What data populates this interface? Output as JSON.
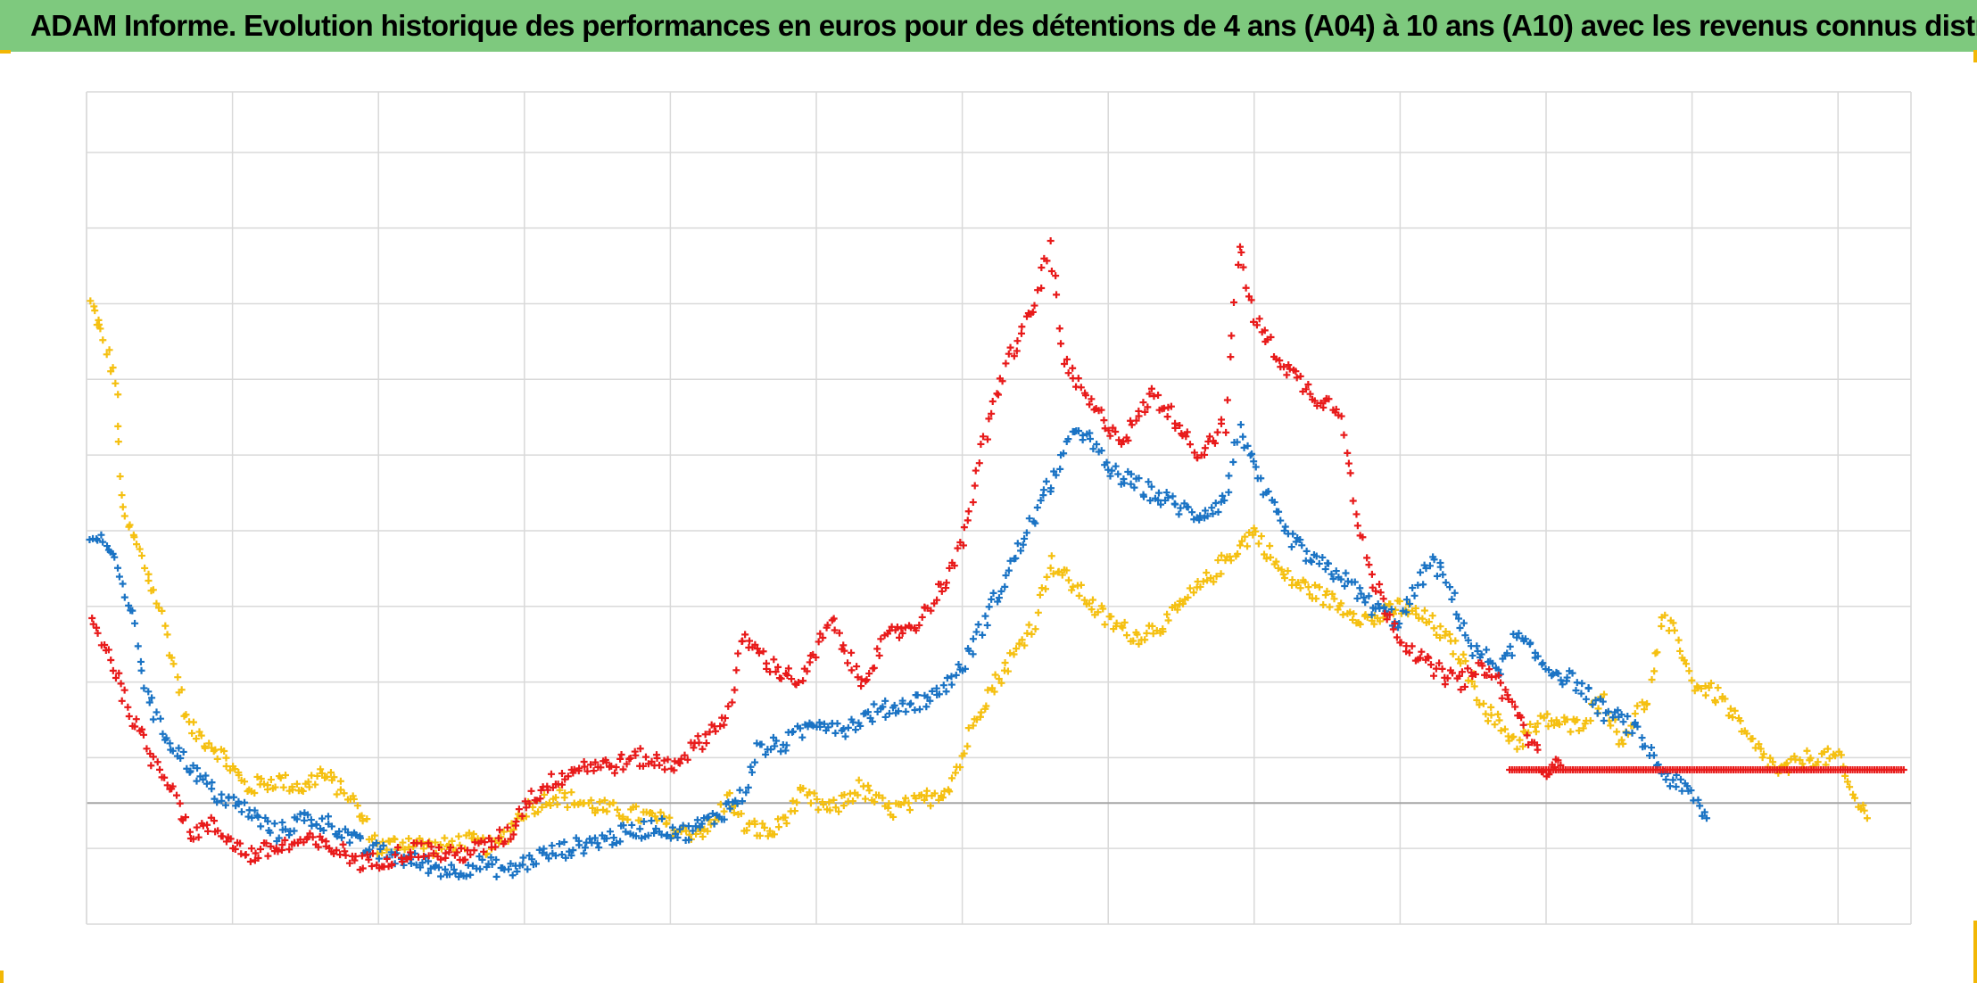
{
  "title": "ADAM Informe. Evolution historique des performances en euros pour des détentions de 4 ans (A04) à 10 ans (A10) avec les revenus connus distribués",
  "colors": {
    "header_bg": "#7ec97e",
    "accent_corner": "#f2b705",
    "grid": "#d9d9d9",
    "baseline": "#a6a6a6"
  },
  "chart_data": {
    "type": "scatter",
    "marker": "plus",
    "title": "ADAM Informe. Evolution historique des performances en euros pour des détentions de 4 ans (A04) à 10 ans (A10) avec les revenus connus distribués",
    "xlabel": "",
    "ylabel": "",
    "xlim": [
      0,
      12.5
    ],
    "ylim": [
      -0.8,
      4.7
    ],
    "baseline_y": 0,
    "grid": true,
    "x_gridlines": 12,
    "y_gridlines": [
      -0.3,
      0,
      0.3,
      0.8,
      1.3,
      1.8,
      2.3,
      2.8,
      3.3,
      3.8,
      4.3,
      4.7
    ],
    "legend": "none",
    "series": [
      {
        "color": "#f5c011",
        "points": [
          [
            0.03,
            3.3
          ],
          [
            0.1,
            3.1
          ],
          [
            0.2,
            2.8
          ],
          [
            0.25,
            1.9
          ],
          [
            0.35,
            1.7
          ],
          [
            0.5,
            1.3
          ],
          [
            0.6,
            0.9
          ],
          [
            0.7,
            0.5
          ],
          [
            0.9,
            0.35
          ],
          [
            1.1,
            0.1
          ],
          [
            1.3,
            0.15
          ],
          [
            1.5,
            0.1
          ],
          [
            1.6,
            0.2
          ],
          [
            1.8,
            0.05
          ],
          [
            2.0,
            -0.3
          ],
          [
            2.2,
            -0.25
          ],
          [
            2.4,
            -0.3
          ],
          [
            2.6,
            -0.25
          ],
          [
            2.8,
            -0.3
          ],
          [
            3.0,
            -0.05
          ],
          [
            3.2,
            0.05
          ],
          [
            3.4,
            0.0
          ],
          [
            3.6,
            -0.05
          ],
          [
            3.9,
            -0.1
          ],
          [
            4.1,
            -0.2
          ],
          [
            4.3,
            -0.15
          ],
          [
            4.4,
            0.05
          ],
          [
            4.5,
            -0.15
          ],
          [
            4.7,
            -0.2
          ],
          [
            4.9,
            0.05
          ],
          [
            5.1,
            -0.05
          ],
          [
            5.3,
            0.1
          ],
          [
            5.5,
            -0.05
          ],
          [
            5.7,
            0.0
          ],
          [
            5.9,
            0.1
          ],
          [
            6.0,
            0.3
          ],
          [
            6.1,
            0.6
          ],
          [
            6.3,
            0.9
          ],
          [
            6.5,
            1.2
          ],
          [
            6.6,
            1.6
          ],
          [
            6.7,
            1.5
          ],
          [
            6.8,
            1.4
          ],
          [
            7.0,
            1.2
          ],
          [
            7.2,
            1.1
          ],
          [
            7.4,
            1.2
          ],
          [
            7.6,
            1.4
          ],
          [
            7.8,
            1.6
          ],
          [
            8.0,
            1.8
          ],
          [
            8.2,
            1.5
          ],
          [
            8.4,
            1.4
          ],
          [
            8.6,
            1.3
          ],
          [
            8.8,
            1.2
          ],
          [
            9.0,
            1.3
          ],
          [
            9.2,
            1.2
          ],
          [
            9.4,
            1.0
          ],
          [
            9.6,
            0.6
          ],
          [
            9.8,
            0.4
          ],
          [
            10.0,
            0.55
          ],
          [
            10.2,
            0.5
          ],
          [
            10.4,
            0.7
          ],
          [
            10.5,
            0.4
          ],
          [
            10.7,
            0.7
          ],
          [
            10.8,
            1.2
          ],
          [
            10.9,
            1.1
          ],
          [
            11.0,
            0.8
          ],
          [
            11.2,
            0.7
          ],
          [
            11.4,
            0.4
          ],
          [
            11.6,
            0.2
          ],
          [
            11.8,
            0.3
          ],
          [
            12.0,
            0.3
          ],
          [
            12.1,
            0.05
          ],
          [
            12.2,
            -0.1
          ]
        ]
      },
      {
        "color": "#1a73c4",
        "points": [
          [
            0.03,
            1.8
          ],
          [
            0.15,
            1.7
          ],
          [
            0.3,
            1.3
          ],
          [
            0.4,
            0.8
          ],
          [
            0.5,
            0.5
          ],
          [
            0.7,
            0.25
          ],
          [
            0.9,
            0.05
          ],
          [
            1.1,
            -0.05
          ],
          [
            1.3,
            -0.2
          ],
          [
            1.5,
            -0.1
          ],
          [
            1.7,
            -0.15
          ],
          [
            1.9,
            -0.3
          ],
          [
            2.1,
            -0.35
          ],
          [
            2.3,
            -0.4
          ],
          [
            2.5,
            -0.45
          ],
          [
            2.7,
            -0.4
          ],
          [
            2.9,
            -0.45
          ],
          [
            3.1,
            -0.35
          ],
          [
            3.3,
            -0.3
          ],
          [
            3.5,
            -0.25
          ],
          [
            3.7,
            -0.2
          ],
          [
            3.9,
            -0.15
          ],
          [
            4.1,
            -0.2
          ],
          [
            4.3,
            -0.1
          ],
          [
            4.5,
            0.05
          ],
          [
            4.6,
            0.35
          ],
          [
            4.8,
            0.4
          ],
          [
            5.0,
            0.55
          ],
          [
            5.2,
            0.5
          ],
          [
            5.4,
            0.6
          ],
          [
            5.6,
            0.65
          ],
          [
            5.8,
            0.7
          ],
          [
            6.0,
            0.9
          ],
          [
            6.2,
            1.3
          ],
          [
            6.4,
            1.7
          ],
          [
            6.6,
            2.1
          ],
          [
            6.8,
            2.5
          ],
          [
            7.0,
            2.2
          ],
          [
            7.2,
            2.1
          ],
          [
            7.4,
            2.0
          ],
          [
            7.6,
            1.9
          ],
          [
            7.8,
            2.0
          ],
          [
            7.9,
            2.5
          ],
          [
            8.0,
            2.2
          ],
          [
            8.2,
            1.8
          ],
          [
            8.4,
            1.6
          ],
          [
            8.6,
            1.5
          ],
          [
            8.8,
            1.3
          ],
          [
            9.0,
            1.2
          ],
          [
            9.2,
            1.6
          ],
          [
            9.3,
            1.5
          ],
          [
            9.5,
            1.0
          ],
          [
            9.7,
            0.9
          ],
          [
            9.8,
            1.1
          ],
          [
            10.0,
            0.9
          ],
          [
            10.2,
            0.8
          ],
          [
            10.4,
            0.6
          ],
          [
            10.6,
            0.5
          ],
          [
            10.8,
            0.2
          ],
          [
            11.0,
            0.05
          ],
          [
            11.1,
            -0.1
          ]
        ]
      },
      {
        "color": "#e81a1a",
        "points": [
          [
            0.03,
            1.2
          ],
          [
            0.15,
            1.0
          ],
          [
            0.3,
            0.6
          ],
          [
            0.45,
            0.3
          ],
          [
            0.6,
            0.1
          ],
          [
            0.7,
            -0.2
          ],
          [
            0.85,
            -0.15
          ],
          [
            1.0,
            -0.25
          ],
          [
            1.1,
            -0.35
          ],
          [
            1.3,
            -0.3
          ],
          [
            1.5,
            -0.25
          ],
          [
            1.7,
            -0.3
          ],
          [
            1.9,
            -0.4
          ],
          [
            2.1,
            -0.35
          ],
          [
            2.3,
            -0.3
          ],
          [
            2.5,
            -0.35
          ],
          [
            2.7,
            -0.3
          ],
          [
            2.9,
            -0.2
          ],
          [
            3.0,
            0.0
          ],
          [
            3.2,
            0.15
          ],
          [
            3.4,
            0.25
          ],
          [
            3.6,
            0.25
          ],
          [
            3.8,
            0.3
          ],
          [
            4.0,
            0.25
          ],
          [
            4.2,
            0.4
          ],
          [
            4.4,
            0.6
          ],
          [
            4.5,
            1.1
          ],
          [
            4.7,
            0.9
          ],
          [
            4.9,
            0.8
          ],
          [
            5.1,
            1.2
          ],
          [
            5.3,
            0.8
          ],
          [
            5.5,
            1.1
          ],
          [
            5.7,
            1.2
          ],
          [
            5.9,
            1.5
          ],
          [
            6.0,
            1.7
          ],
          [
            6.1,
            2.2
          ],
          [
            6.3,
            2.9
          ],
          [
            6.5,
            3.3
          ],
          [
            6.6,
            3.7
          ],
          [
            6.7,
            2.9
          ],
          [
            6.9,
            2.6
          ],
          [
            7.1,
            2.4
          ],
          [
            7.3,
            2.7
          ],
          [
            7.5,
            2.5
          ],
          [
            7.6,
            2.3
          ],
          [
            7.8,
            2.5
          ],
          [
            7.9,
            3.7
          ],
          [
            8.0,
            3.2
          ],
          [
            8.2,
            2.9
          ],
          [
            8.4,
            2.7
          ],
          [
            8.6,
            2.6
          ],
          [
            8.7,
            1.9
          ],
          [
            8.8,
            1.5
          ],
          [
            9.0,
            1.1
          ],
          [
            9.2,
            0.9
          ],
          [
            9.4,
            0.8
          ],
          [
            9.6,
            0.9
          ],
          [
            9.8,
            0.6
          ],
          [
            9.9,
            0.4
          ],
          [
            10.0,
            0.2
          ],
          [
            10.1,
            0.25
          ]
        ],
        "flat_segment": {
          "x_start": 9.75,
          "x_end": 12.45,
          "y": 0.22
        }
      }
    ]
  }
}
